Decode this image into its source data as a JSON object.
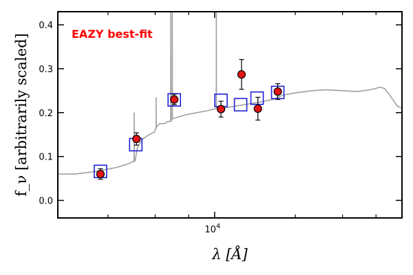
{
  "chart_data": {
    "type": "scatter",
    "title": "",
    "annotation": "EAZY best-fit",
    "annotation_color": "#ff0000",
    "ylabel": "f_ν [arbitrarily scaled]",
    "xlabel": "λ [Å]",
    "x_scale": "log",
    "xlim": [
      2600,
      50000
    ],
    "ylim": [
      -0.04,
      0.43
    ],
    "yticks": [
      0.0,
      0.1,
      0.2,
      0.3,
      0.4
    ],
    "ytick_labels": [
      "0.0",
      "0.1",
      "0.2",
      "0.3",
      "0.4"
    ],
    "xticks": [
      10000
    ],
    "xtick_labels": [
      "10^4"
    ],
    "xtick_minor": [
      4000,
      6000,
      8000,
      20000,
      30000,
      40000
    ],
    "grid": false,
    "colors": {
      "sed": "#a0a0a0",
      "model_box": "#1f1fd6",
      "observed_fill": "#e31414",
      "observed_edge": "#000000"
    },
    "series": [
      {
        "name": "",
        "kind": "sed_line",
        "x": [
          2600,
          3000,
          3500,
          3900,
          4300,
          4700,
          5050,
          5150,
          5200,
          5400,
          5700,
          5950,
          6050,
          6100,
          6250,
          6500,
          6700,
          6880,
          6900,
          7300,
          7800,
          8600,
          9500,
          10200,
          10350,
          10800,
          12000,
          13500,
          15000,
          16500,
          18000,
          20000,
          23000,
          26000,
          30000,
          34000,
          38000,
          41500,
          43000,
          45000,
          48000,
          50000
        ],
        "y": [
          0.06,
          0.06,
          0.065,
          0.07,
          0.075,
          0.082,
          0.09,
          0.12,
          0.125,
          0.14,
          0.15,
          0.155,
          0.165,
          0.17,
          0.175,
          0.175,
          0.18,
          0.18,
          0.185,
          0.19,
          0.195,
          0.2,
          0.205,
          0.21,
          0.205,
          0.21,
          0.215,
          0.22,
          0.225,
          0.23,
          0.24,
          0.245,
          0.25,
          0.252,
          0.25,
          0.248,
          0.252,
          0.258,
          0.255,
          0.24,
          0.215,
          0.21
        ],
        "emission_lines": [
          {
            "x": 5010,
            "peak": 0.2
          },
          {
            "x": 6050,
            "peak": 0.235
          },
          {
            "x": 6860,
            "peak": 0.43
          },
          {
            "x": 6950,
            "peak": 0.43
          },
          {
            "x": 10150,
            "peak": 0.43
          }
        ]
      },
      {
        "name": "",
        "kind": "model_fluxes",
        "x": [
          3750,
          5080,
          7070,
          10560,
          12500,
          14400,
          17200
        ],
        "y": [
          0.066,
          0.127,
          0.229,
          0.228,
          0.218,
          0.233,
          0.246
        ]
      },
      {
        "name": "",
        "kind": "observed_fluxes",
        "x": [
          3750,
          5110,
          7070,
          10560,
          12600,
          14500,
          17200
        ],
        "y": [
          0.06,
          0.14,
          0.23,
          0.208,
          0.287,
          0.209,
          0.248
        ],
        "err": [
          0.012,
          0.014,
          0.012,
          0.018,
          0.034,
          0.026,
          0.018
        ]
      }
    ]
  }
}
